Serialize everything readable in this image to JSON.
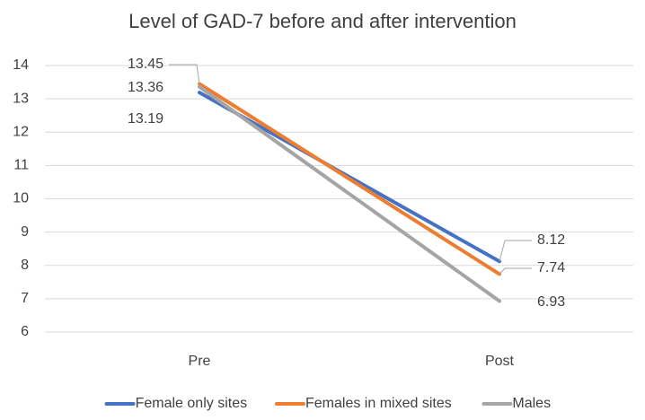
{
  "chart_data": {
    "type": "line",
    "title": "Level of GAD-7 before and after intervention",
    "categories": [
      "Pre",
      "Post"
    ],
    "series": [
      {
        "name": "Female only sites",
        "color": "#4472c4",
        "values": [
          13.19,
          8.12
        ]
      },
      {
        "name": "Females in mixed sites",
        "color": "#ed7d31",
        "values": [
          13.45,
          7.74
        ]
      },
      {
        "name": "Males",
        "color": "#a5a5a5",
        "values": [
          13.36,
          6.93
        ]
      }
    ],
    "ylim": [
      6,
      14
    ],
    "yticks": [
      6,
      7,
      8,
      9,
      10,
      11,
      12,
      13,
      14
    ],
    "grid": true,
    "legend": "bottom"
  }
}
